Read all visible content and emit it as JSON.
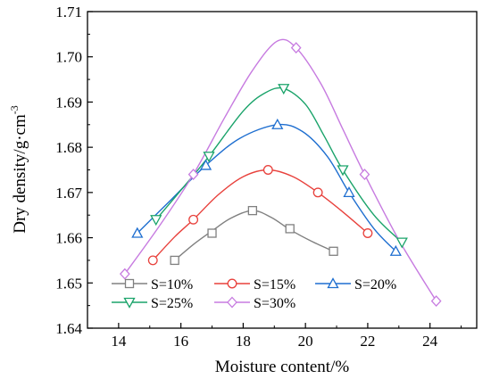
{
  "chart_data": {
    "type": "line",
    "xlabel": "Moisture content/%",
    "ylabel_prefix": "Dry density/g·cm",
    "ylabel_sup": "-3",
    "xlim": [
      13,
      25.5
    ],
    "ylim": [
      1.64,
      1.71
    ],
    "x_ticks": [
      14,
      16,
      18,
      20,
      22,
      24
    ],
    "x_tick_labels": [
      "14",
      "16",
      "18",
      "20",
      "22",
      "24"
    ],
    "y_ticks": [
      1.64,
      1.65,
      1.66,
      1.67,
      1.68,
      1.69,
      1.7,
      1.71
    ],
    "y_tick_labels": [
      "1.64",
      "1.65",
      "1.66",
      "1.67",
      "1.68",
      "1.69",
      "1.70",
      "1.71"
    ],
    "grid": false,
    "legend_position": "bottom-left",
    "series": [
      {
        "name": "S=10%",
        "color": "#808080",
        "marker": "square",
        "points": [
          [
            15.8,
            1.655
          ],
          [
            17.0,
            1.661
          ],
          [
            18.3,
            1.666
          ],
          [
            19.5,
            1.662
          ],
          [
            20.9,
            1.657
          ]
        ],
        "fit": [
          [
            15.8,
            1.655
          ],
          [
            16.4,
            1.6585
          ],
          [
            17.0,
            1.6615
          ],
          [
            17.6,
            1.6643
          ],
          [
            18.3,
            1.666
          ],
          [
            18.9,
            1.6645
          ],
          [
            19.5,
            1.6618
          ],
          [
            20.2,
            1.6592
          ],
          [
            20.9,
            1.657
          ]
        ]
      },
      {
        "name": "S=15%",
        "color": "#e8413c",
        "marker": "circle",
        "points": [
          [
            15.1,
            1.655
          ],
          [
            16.4,
            1.664
          ],
          [
            18.8,
            1.675
          ],
          [
            20.4,
            1.67
          ],
          [
            22.0,
            1.661
          ]
        ],
        "fit": [
          [
            15.1,
            1.655
          ],
          [
            15.8,
            1.6602
          ],
          [
            16.4,
            1.664
          ],
          [
            17.2,
            1.6695
          ],
          [
            18.0,
            1.6735
          ],
          [
            18.8,
            1.675
          ],
          [
            19.6,
            1.6735
          ],
          [
            20.4,
            1.67
          ],
          [
            21.2,
            1.6657
          ],
          [
            22.0,
            1.661
          ]
        ]
      },
      {
        "name": "S=20%",
        "color": "#1f6fd0",
        "marker": "triangle-up",
        "points": [
          [
            14.6,
            1.661
          ],
          [
            16.8,
            1.676
          ],
          [
            19.1,
            1.685
          ],
          [
            21.4,
            1.67
          ],
          [
            22.9,
            1.657
          ]
        ],
        "fit": [
          [
            14.6,
            1.661
          ],
          [
            15.7,
            1.6685
          ],
          [
            16.8,
            1.676
          ],
          [
            17.9,
            1.682
          ],
          [
            19.1,
            1.685
          ],
          [
            19.9,
            1.6835
          ],
          [
            20.7,
            1.678
          ],
          [
            21.4,
            1.67
          ],
          [
            22.2,
            1.662
          ],
          [
            22.9,
            1.657
          ]
        ]
      },
      {
        "name": "S=25%",
        "color": "#1aa36a",
        "marker": "triangle-down",
        "points": [
          [
            15.2,
            1.664
          ],
          [
            16.9,
            1.678
          ],
          [
            19.3,
            1.693
          ],
          [
            21.2,
            1.675
          ],
          [
            23.1,
            1.659
          ]
        ],
        "fit": [
          [
            15.2,
            1.664
          ],
          [
            16.0,
            1.6705
          ],
          [
            16.9,
            1.678
          ],
          [
            18.0,
            1.688
          ],
          [
            18.7,
            1.692
          ],
          [
            19.3,
            1.693
          ],
          [
            20.0,
            1.6895
          ],
          [
            20.6,
            1.6825
          ],
          [
            21.2,
            1.675
          ],
          [
            22.2,
            1.665
          ],
          [
            23.1,
            1.659
          ]
        ]
      },
      {
        "name": "S=30%",
        "color": "#c77be0",
        "marker": "diamond",
        "points": [
          [
            14.2,
            1.652
          ],
          [
            16.4,
            1.674
          ],
          [
            19.7,
            1.702
          ],
          [
            21.9,
            1.674
          ],
          [
            24.2,
            1.646
          ]
        ],
        "fit": [
          [
            14.2,
            1.652
          ],
          [
            15.3,
            1.6625
          ],
          [
            16.4,
            1.674
          ],
          [
            17.4,
            1.6865
          ],
          [
            18.3,
            1.697
          ],
          [
            19.1,
            1.7035
          ],
          [
            19.7,
            1.702
          ],
          [
            20.5,
            1.694
          ],
          [
            21.2,
            1.684
          ],
          [
            21.9,
            1.674
          ],
          [
            23.0,
            1.6595
          ],
          [
            24.2,
            1.646
          ]
        ]
      }
    ]
  }
}
